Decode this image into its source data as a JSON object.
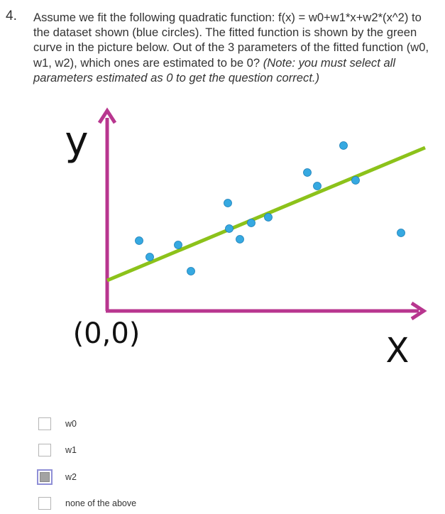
{
  "question": {
    "number": "4.",
    "text": "Assume we fit the following quadratic function: f(x) = w0+w1*x+w2*(x^2) to the dataset shown (blue circles). The fitted function is shown by the green curve in the picture below. Out of the 3 parameters of the fitted function (w0, w1, w2), which ones are estimated to be 0?",
    "note": "(Note: you must select all parameters estimated as 0 to get the question correct.)"
  },
  "figure": {
    "y_axis_label": "y",
    "x_axis_label": "X",
    "origin_label": "(0,0)",
    "colors": {
      "axis": "#b8368f",
      "fit_line": "#8cc21a",
      "points": "#36a9e1"
    }
  },
  "chart_data": {
    "type": "scatter",
    "title": "",
    "xlabel": "X",
    "ylabel": "y",
    "x": [
      45,
      60,
      100,
      118,
      170,
      172,
      187,
      203,
      227,
      282,
      296,
      333,
      350,
      414
    ],
    "y": [
      99,
      76,
      93,
      56,
      152,
      116,
      101,
      124,
      132,
      195,
      176,
      233,
      184,
      110
    ],
    "fit_line": {
      "x": [
        0,
        448
      ],
      "y": [
        43,
        230
      ]
    },
    "xlim": [
      0,
      448
    ],
    "ylim": [
      0,
      280
    ],
    "grid": false,
    "legend": "none"
  },
  "options": [
    {
      "label": "w0",
      "checked": false
    },
    {
      "label": "w1",
      "checked": false
    },
    {
      "label": "w2",
      "checked": true
    },
    {
      "label": "none of the above",
      "checked": false
    }
  ]
}
